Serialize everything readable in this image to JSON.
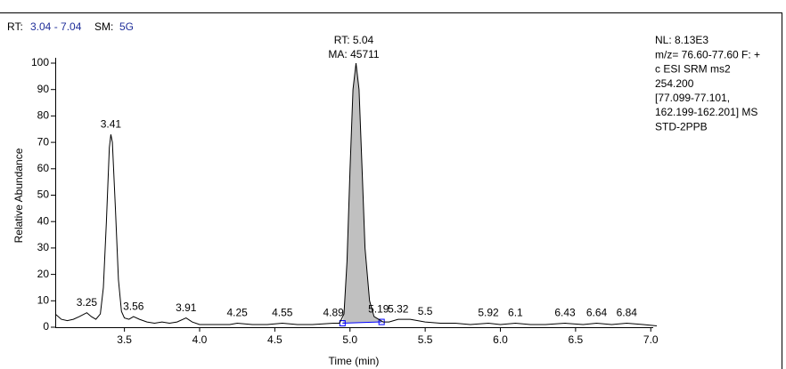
{
  "chart_data": {
    "type": "chromatogram",
    "header": {
      "rt_label": "RT:",
      "rt_range": "3.04 - 7.04",
      "sm_label": "SM:",
      "sm_value": "5G"
    },
    "info": [
      "NL: 8.13E3",
      "m/z= 76.60-77.60 F: +",
      "c ESI SRM ms2",
      "254.200",
      "[77.099-77.101,",
      "162.199-162.201]  MS",
      "STD-2PPB"
    ],
    "x_label": "Time (min)",
    "y_label": "Relative Abundance",
    "xlim": [
      3.04,
      7.04
    ],
    "ylim": [
      0,
      100
    ],
    "xticks": [
      3.5,
      {
        "value": 4,
        "label": "4.0"
      },
      4.5,
      {
        "value": 5,
        "label": "5.0"
      },
      5.5,
      {
        "value": 6,
        "label": "6.0"
      },
      6.5,
      {
        "value": 7,
        "label": "7.0"
      }
    ],
    "yticks": [
      0,
      10,
      20,
      30,
      40,
      50,
      60,
      70,
      80,
      90,
      100
    ],
    "trace": {
      "color": "#000000",
      "x": [
        3.04,
        3.08,
        3.12,
        3.16,
        3.2,
        3.25,
        3.28,
        3.31,
        3.34,
        3.36,
        3.38,
        3.4,
        3.41,
        3.42,
        3.44,
        3.46,
        3.48,
        3.5,
        3.53,
        3.56,
        3.6,
        3.65,
        3.7,
        3.75,
        3.8,
        3.85,
        3.91,
        3.95,
        4.0,
        4.1,
        4.2,
        4.25,
        4.35,
        4.45,
        4.55,
        4.65,
        4.75,
        4.89,
        4.93,
        4.96,
        4.98,
        5.0,
        5.02,
        5.04,
        5.06,
        5.08,
        5.1,
        5.13,
        5.16,
        5.19,
        5.22,
        5.26,
        5.32,
        5.4,
        5.5,
        5.6,
        5.7,
        5.8,
        5.92,
        6.0,
        6.1,
        6.2,
        6.3,
        6.43,
        6.55,
        6.64,
        6.74,
        6.84,
        6.95,
        7.04
      ],
      "values": [
        5,
        3,
        2.5,
        3,
        4,
        5.5,
        4,
        3,
        5,
        15,
        40,
        68,
        73,
        70,
        45,
        18,
        6,
        3.5,
        3,
        4,
        3,
        2,
        1.5,
        2,
        1.5,
        2,
        3.5,
        2,
        1,
        1,
        1,
        1.5,
        1,
        1,
        1.5,
        1,
        1,
        1.5,
        1.5,
        5,
        25,
        60,
        90,
        100,
        90,
        60,
        30,
        10,
        4,
        3,
        2,
        2,
        3,
        3,
        2,
        1.5,
        1.5,
        1,
        1.5,
        1,
        1.5,
        1,
        1,
        1.5,
        1,
        1.5,
        1,
        1.5,
        1,
        0.5
      ]
    },
    "peaks": {
      "x": [
        3.25,
        3.41,
        3.56,
        3.91,
        4.25,
        4.55,
        4.89,
        5.19,
        5.32,
        5.5,
        5.92,
        6.1,
        6.43,
        6.64,
        6.84
      ],
      "values": [
        5.5,
        73,
        4,
        3.5,
        1.5,
        1.5,
        1.5,
        3,
        3,
        2,
        1.5,
        1.5,
        1.5,
        1.5,
        1.5
      ]
    },
    "main_peak": {
      "rt_label": "RT: 5.04",
      "area_label": "MA: 45711",
      "x": 5.04,
      "value": 100
    },
    "integration": {
      "x": [
        4.95,
        5.21
      ],
      "values": [
        1.5,
        2
      ],
      "fill": "#c0c0c0",
      "baseline_color": "#0000ff"
    }
  }
}
